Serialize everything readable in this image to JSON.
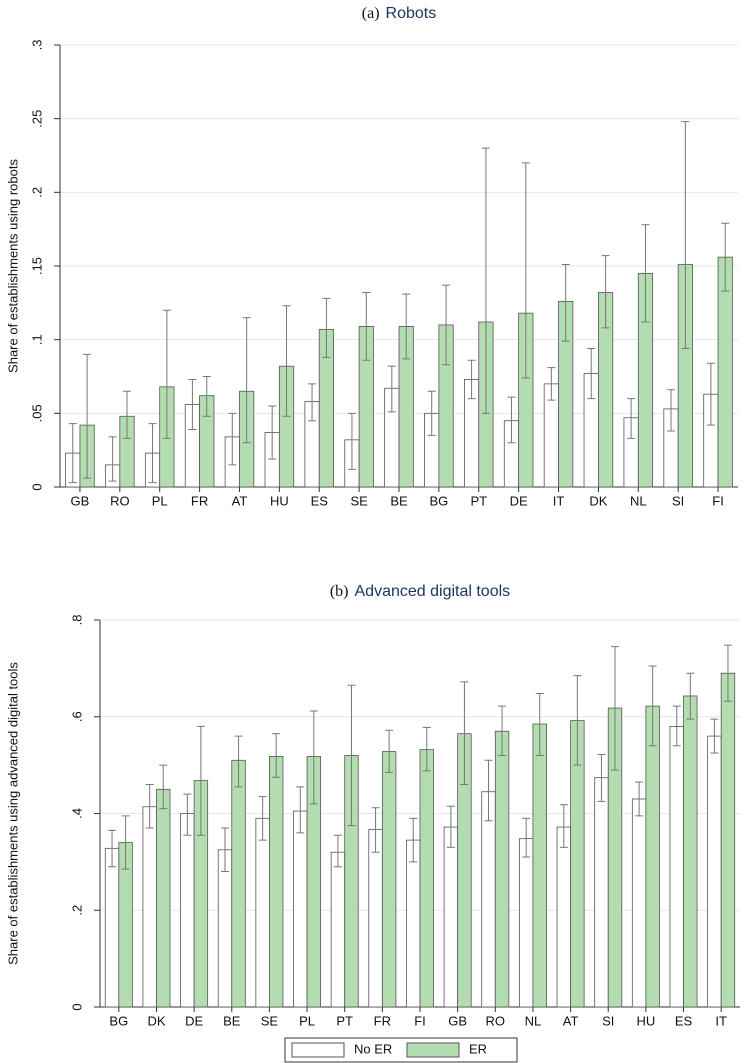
{
  "chart_data": [
    {
      "type": "bar",
      "panel_label": "(a)",
      "title": "Robots",
      "y_label": "Share of establishments using robots",
      "categories": [
        "GB",
        "RO",
        "PL",
        "FR",
        "AT",
        "HU",
        "ES",
        "SE",
        "BE",
        "BG",
        "PT",
        "DE",
        "IT",
        "DK",
        "NL",
        "SI",
        "FI"
      ],
      "series": [
        {
          "color": "#ffffff",
          "values": [
            0.023,
            0.015,
            0.023,
            0.056,
            0.034,
            0.037,
            0.058,
            0.032,
            0.067,
            0.05,
            0.073,
            0.045,
            0.07,
            0.077,
            0.047,
            0.053,
            0.063
          ],
          "error_low": [
            0.003,
            0.004,
            0.003,
            0.039,
            0.015,
            0.019,
            0.045,
            0.012,
            0.051,
            0.035,
            0.06,
            0.03,
            0.059,
            0.06,
            0.033,
            0.038,
            0.042
          ],
          "error_high": [
            0.043,
            0.034,
            0.043,
            0.073,
            0.05,
            0.055,
            0.07,
            0.05,
            0.082,
            0.065,
            0.086,
            0.061,
            0.081,
            0.094,
            0.06,
            0.066,
            0.084
          ]
        },
        {
          "color": "#b4dcb1",
          "values": [
            0.042,
            0.048,
            0.068,
            0.062,
            0.065,
            0.082,
            0.107,
            0.109,
            0.109,
            0.11,
            0.112,
            0.118,
            0.126,
            0.132,
            0.145,
            0.151,
            0.156
          ],
          "error_low": [
            0.006,
            0.033,
            0.033,
            0.048,
            0.03,
            0.048,
            0.088,
            0.086,
            0.087,
            0.083,
            0.05,
            0.074,
            0.099,
            0.108,
            0.112,
            0.094,
            0.133
          ],
          "error_high": [
            0.09,
            0.065,
            0.12,
            0.075,
            0.115,
            0.123,
            0.128,
            0.132,
            0.131,
            0.137,
            0.23,
            0.22,
            0.151,
            0.157,
            0.178,
            0.248,
            0.179
          ]
        }
      ],
      "ylim": [
        0,
        0.3
      ],
      "yticks": [
        0,
        {
          "value": 0.05,
          "label": ".05"
        },
        {
          "value": 0.1,
          "label": ".1"
        },
        {
          "value": 0.15,
          "label": ".15"
        },
        {
          "value": 0.2,
          "label": ".2"
        },
        {
          "value": 0.25,
          "label": ".25"
        },
        {
          "value": 0.3,
          "label": ".3"
        }
      ],
      "grid": true
    },
    {
      "type": "bar",
      "panel_label": "(b)",
      "title": "Advanced digital tools",
      "y_label": "Share of establishments using advanced digital tools",
      "categories": [
        "BG",
        "DK",
        "DE",
        "BE",
        "SE",
        "PL",
        "PT",
        "FR",
        "FI",
        "GB",
        "RO",
        "NL",
        "AT",
        "SI",
        "HU",
        "ES",
        "IT"
      ],
      "series": [
        {
          "name": "No ER",
          "color": "#ffffff",
          "values": [
            0.328,
            0.414,
            0.4,
            0.325,
            0.39,
            0.405,
            0.32,
            0.367,
            0.345,
            0.372,
            0.445,
            0.348,
            0.372,
            0.474,
            0.43,
            0.58,
            0.56
          ],
          "error_low": [
            0.29,
            0.37,
            0.355,
            0.28,
            0.345,
            0.36,
            0.29,
            0.32,
            0.3,
            0.33,
            0.385,
            0.31,
            0.33,
            0.425,
            0.395,
            0.54,
            0.525
          ],
          "error_high": [
            0.365,
            0.46,
            0.44,
            0.37,
            0.435,
            0.455,
            0.355,
            0.412,
            0.39,
            0.415,
            0.51,
            0.39,
            0.418,
            0.522,
            0.465,
            0.622,
            0.595
          ]
        },
        {
          "name": "ER",
          "color": "#b4dcb1",
          "values": [
            0.34,
            0.45,
            0.468,
            0.51,
            0.518,
            0.518,
            0.52,
            0.528,
            0.532,
            0.565,
            0.57,
            0.585,
            0.592,
            0.618,
            0.622,
            0.643,
            0.69
          ],
          "error_low": [
            0.285,
            0.41,
            0.355,
            0.455,
            0.475,
            0.42,
            0.375,
            0.485,
            0.488,
            0.46,
            0.52,
            0.52,
            0.5,
            0.49,
            0.54,
            0.595,
            0.632
          ],
          "error_high": [
            0.395,
            0.5,
            0.58,
            0.56,
            0.565,
            0.612,
            0.665,
            0.572,
            0.578,
            0.672,
            0.622,
            0.648,
            0.685,
            0.745,
            0.705,
            0.69,
            0.748
          ]
        }
      ],
      "ylim": [
        0,
        0.8
      ],
      "yticks": [
        0,
        {
          "value": 0.2,
          "label": ".2"
        },
        {
          "value": 0.4,
          "label": ".4"
        },
        {
          "value": 0.6,
          "label": ".6"
        },
        {
          "value": 0.8,
          "label": ".8"
        }
      ],
      "grid": true,
      "legend": "bottom"
    }
  ]
}
